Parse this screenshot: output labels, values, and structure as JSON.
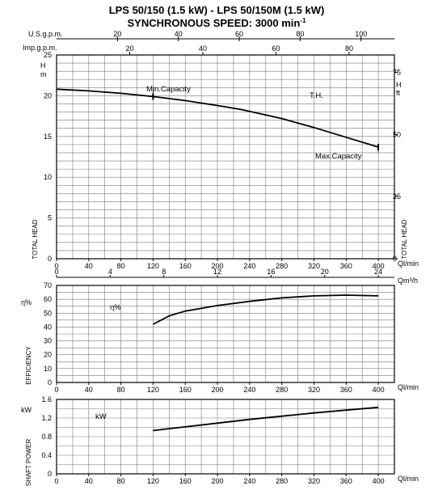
{
  "title_line1": "LPS 50/150 (1.5 kW) - LPS 50/150M (1.5 kW)",
  "title_line2_prefix": "SYNCHRONOUS SPEED: 3000 min",
  "title_line2_sup": "-1",
  "chart_data": [
    {
      "type": "line",
      "title": "TOTAL HEAD",
      "xlabel": "Ql/min",
      "x_ticks": [
        0,
        40,
        80,
        120,
        160,
        200,
        240,
        280,
        320,
        360,
        400
      ],
      "xlim": [
        0,
        420
      ],
      "ylabel_left": "TOTAL HEAD",
      "y_unit_left": "H m",
      "ylim": [
        0,
        25
      ],
      "y_ticks": [
        0,
        5,
        10,
        15,
        20,
        25
      ],
      "ylabel_right": "TOTAL HEAD",
      "y_unit_right": "H ft",
      "y_ticks_right": [
        0,
        25,
        50,
        75
      ],
      "secondary_x_axes": [
        {
          "label": "U.S.g.p.m.",
          "ticks": [
            20,
            40,
            60,
            80,
            100
          ]
        },
        {
          "label": "Imp.g.p.m.",
          "ticks": [
            20,
            40,
            60,
            80
          ]
        },
        {
          "label": "Qm³/h",
          "ticks": [
            0,
            4,
            8,
            12,
            16,
            20,
            24
          ]
        }
      ],
      "grid": true,
      "series": [
        {
          "name": "T.H.",
          "x": [
            0,
            40,
            80,
            120,
            160,
            200,
            230,
            280,
            320,
            360,
            400
          ],
          "y": [
            20.8,
            20.6,
            20.3,
            19.9,
            19.4,
            18.8,
            18.3,
            17.2,
            16.1,
            14.9,
            13.7
          ]
        }
      ],
      "annotations": [
        "Min.Capacity",
        "Max.Capacity",
        "T.H."
      ]
    },
    {
      "type": "line",
      "title": "EFFICIENCY",
      "xlabel": "Ql/min",
      "x_ticks": [
        0,
        40,
        80,
        120,
        160,
        200,
        240,
        280,
        320,
        360,
        400
      ],
      "ylabel": "EFFICIENCY",
      "y_unit": "η%",
      "ylim": [
        0,
        70
      ],
      "y_ticks": [
        0,
        10,
        20,
        30,
        40,
        50,
        60,
        70
      ],
      "grid": true,
      "series": [
        {
          "name": "η%",
          "x": [
            120,
            140,
            160,
            200,
            240,
            280,
            320,
            360,
            400
          ],
          "y": [
            42,
            48,
            51.5,
            55.5,
            58.5,
            61,
            62.5,
            63,
            62.5
          ]
        }
      ]
    },
    {
      "type": "line",
      "title": "SHAFT POWER",
      "xlabel": "Ql/min",
      "x_ticks": [
        0,
        40,
        80,
        120,
        160,
        200,
        240,
        280,
        320,
        360,
        400
      ],
      "ylabel": "SHAFT POWER",
      "y_unit": "kW",
      "ylim": [
        0,
        1.6
      ],
      "y_ticks": [
        "0",
        "0.4",
        "0.8",
        "1.2",
        "1.6"
      ],
      "grid": true,
      "series": [
        {
          "name": "kW",
          "x": [
            120,
            160,
            200,
            240,
            280,
            320,
            360,
            400
          ],
          "y": [
            0.93,
            1.01,
            1.09,
            1.17,
            1.24,
            1.31,
            1.37,
            1.43
          ]
        }
      ]
    }
  ]
}
